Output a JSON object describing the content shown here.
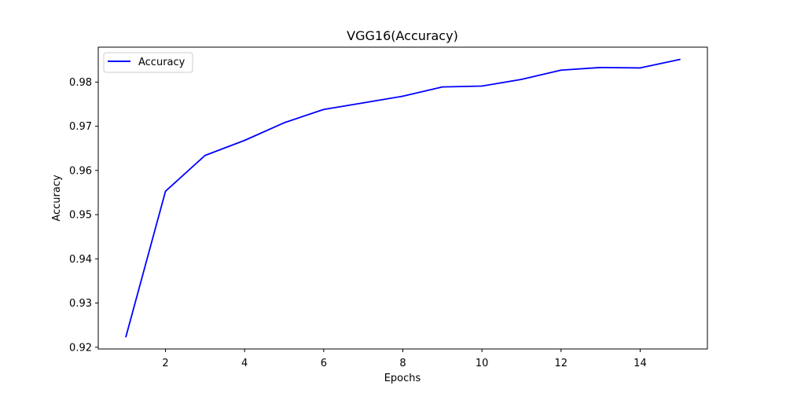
{
  "chart_data": {
    "type": "line",
    "title": "VGG16(Accuracy)",
    "xlabel": "Epochs",
    "ylabel": "Accuracy",
    "x": [
      1,
      2,
      3,
      4,
      5,
      6,
      7,
      8,
      9,
      10,
      11,
      12,
      13,
      14,
      15
    ],
    "series": [
      {
        "name": "Accuracy",
        "color": "#0000ff",
        "values": [
          0.9224,
          0.9553,
          0.9634,
          0.9668,
          0.9708,
          0.9738,
          0.9753,
          0.9768,
          0.9789,
          0.9791,
          0.9806,
          0.9827,
          0.9833,
          0.9832,
          0.9851
        ]
      }
    ],
    "xlim": [
      0.3,
      15.7
    ],
    "ylim": [
      0.9196,
      0.9879
    ],
    "xticks": [
      2,
      4,
      6,
      8,
      10,
      12,
      14
    ],
    "xtick_labels": [
      "2",
      "4",
      "6",
      "8",
      "10",
      "12",
      "14"
    ],
    "yticks": [
      0.92,
      0.93,
      0.94,
      0.95,
      0.96,
      0.97,
      0.98
    ],
    "ytick_labels": [
      "0.92",
      "0.93",
      "0.94",
      "0.95",
      "0.96",
      "0.97",
      "0.98"
    ],
    "grid": false,
    "legend_position": "top-left"
  }
}
